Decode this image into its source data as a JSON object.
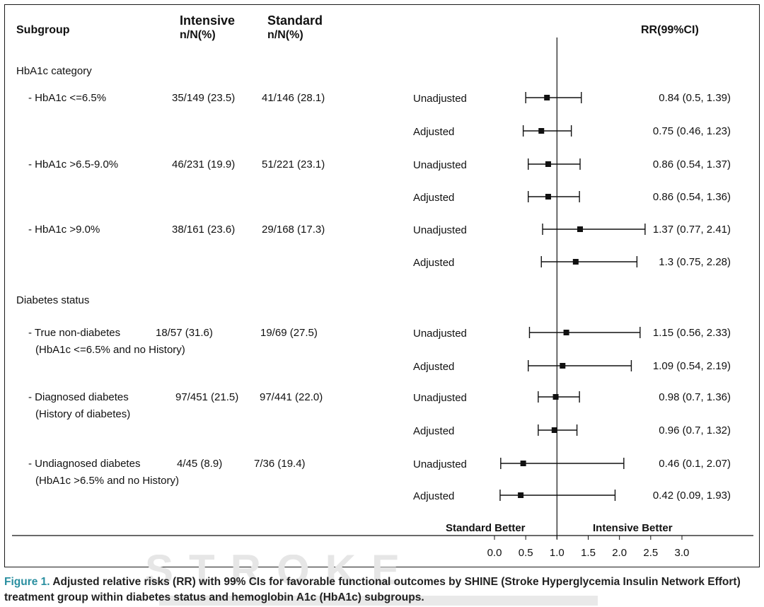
{
  "headers": {
    "subgroup": "Subgroup",
    "intensive_top": "Intensive",
    "intensive_sub": "n/N(%)",
    "standard_top": "Standard",
    "standard_sub": "n/N(%)",
    "rr": "RR(99%CI)"
  },
  "sections": [
    {
      "title": "HbA1c category",
      "groups": [
        {
          "label1": "- HbA1c <=6.5%",
          "label2": "",
          "intensive": "35/149 (23.5)",
          "standard": "41/146 (28.1)",
          "rows": [
            {
              "type": "Unadjusted",
              "rr": 0.84,
              "lo": 0.5,
              "hi": 1.39,
              "text": "0.84 (0.5, 1.39)"
            },
            {
              "type": "Adjusted",
              "rr": 0.75,
              "lo": 0.46,
              "hi": 1.23,
              "text": "0.75 (0.46, 1.23)"
            }
          ]
        },
        {
          "label1": "- HbA1c >6.5-9.0%",
          "label2": "",
          "intensive": "46/231 (19.9)",
          "standard": "51/221 (23.1)",
          "rows": [
            {
              "type": "Unadjusted",
              "rr": 0.86,
              "lo": 0.54,
              "hi": 1.37,
              "text": "0.86 (0.54, 1.37)"
            },
            {
              "type": "Adjusted",
              "rr": 0.86,
              "lo": 0.54,
              "hi": 1.36,
              "text": "0.86 (0.54, 1.36)"
            }
          ]
        },
        {
          "label1": "- HbA1c >9.0%",
          "label2": "",
          "intensive": "38/161 (23.6)",
          "standard": "29/168 (17.3)",
          "rows": [
            {
              "type": "Unadjusted",
              "rr": 1.37,
              "lo": 0.77,
              "hi": 2.41,
              "text": "1.37 (0.77, 2.41)"
            },
            {
              "type": "Adjusted",
              "rr": 1.3,
              "lo": 0.75,
              "hi": 2.28,
              "text": "1.3 (0.75, 2.28)"
            }
          ]
        }
      ]
    },
    {
      "title": "Diabetes status",
      "groups": [
        {
          "label1": "- True non-diabetes",
          "label2": "(HbA1c <=6.5% and no History)",
          "intensive": "18/57 (31.6)",
          "standard": "19/69 (27.5)",
          "rows": [
            {
              "type": "Unadjusted",
              "rr": 1.15,
              "lo": 0.56,
              "hi": 2.33,
              "text": "1.15 (0.56, 2.33)"
            },
            {
              "type": "Adjusted",
              "rr": 1.09,
              "lo": 0.54,
              "hi": 2.19,
              "text": "1.09 (0.54, 2.19)"
            }
          ]
        },
        {
          "label1": "- Diagnosed diabetes",
          "label2": "(History of diabetes)",
          "intensive": "97/451 (21.5)",
          "standard": "97/441 (22.0)",
          "rows": [
            {
              "type": "Unadjusted",
              "rr": 0.98,
              "lo": 0.7,
              "hi": 1.36,
              "text": "0.98 (0.7, 1.36)"
            },
            {
              "type": "Adjusted",
              "rr": 0.96,
              "lo": 0.7,
              "hi": 1.32,
              "text": "0.96 (0.7, 1.32)"
            }
          ]
        },
        {
          "label1": "- Undiagnosed diabetes",
          "label2": "(HbA1c >6.5% and no History)",
          "intensive": "4/45 (8.9)",
          "standard": "7/36 (19.4)",
          "rows": [
            {
              "type": "Unadjusted",
              "rr": 0.46,
              "lo": 0.1,
              "hi": 2.07,
              "text": "0.46 (0.1, 2.07)"
            },
            {
              "type": "Adjusted",
              "rr": 0.42,
              "lo": 0.09,
              "hi": 1.93,
              "text": "0.42 (0.09, 1.93)"
            }
          ]
        }
      ]
    }
  ],
  "axis": {
    "ticks": [
      "0.0",
      "0.5",
      "1.0",
      "1.5",
      "2.0",
      "2.5",
      "3.0"
    ],
    "xlim": [
      0,
      3
    ],
    "reference": 1.0,
    "left_label": "Standard Better",
    "right_label": "Intensive Better"
  },
  "chart_data": {
    "type": "scatter",
    "xlabel": "",
    "xlim": [
      0,
      3
    ],
    "reference_line": 1.0,
    "series": [
      {
        "categories": [
          "HbA1c <=6.5% Unadjusted",
          "HbA1c <=6.5% Adjusted",
          "HbA1c >6.5-9.0% Unadjusted",
          "HbA1c >6.5-9.0% Adjusted",
          "HbA1c >9.0% Unadjusted",
          "HbA1c >9.0% Adjusted",
          "True non-diabetes Unadjusted",
          "True non-diabetes Adjusted",
          "Diagnosed diabetes Unadjusted",
          "Diagnosed diabetes Adjusted",
          "Undiagnosed diabetes Unadjusted",
          "Undiagnosed diabetes Adjusted"
        ],
        "values": [
          0.84,
          0.75,
          0.86,
          0.86,
          1.37,
          1.3,
          1.15,
          1.09,
          0.98,
          0.96,
          0.46,
          0.42
        ],
        "lower": [
          0.5,
          0.46,
          0.54,
          0.54,
          0.77,
          0.75,
          0.56,
          0.54,
          0.7,
          0.7,
          0.1,
          0.09
        ],
        "upper": [
          1.39,
          1.23,
          1.37,
          1.36,
          2.41,
          2.28,
          2.33,
          2.19,
          1.36,
          1.32,
          2.07,
          1.93
        ]
      }
    ]
  },
  "watermark": "STROKE",
  "caption": {
    "figure_label": "Figure 1.",
    "text": " Adjusted relative risks (RR) with 99% CIs for favorable functional outcomes by SHINE (Stroke Hyperglycemia Insulin Network Effort) treatment group within diabetes status and hemoglobin A1c (HbA1c) subgroups."
  }
}
